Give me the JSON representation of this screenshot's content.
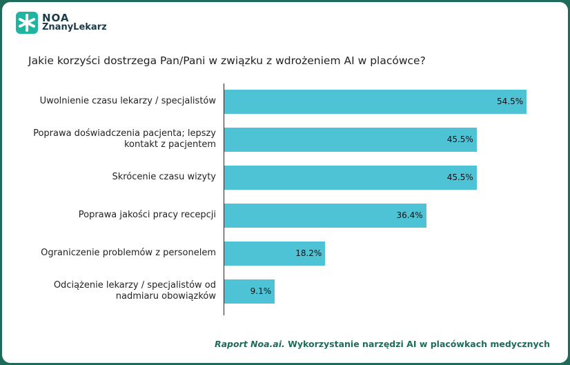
{
  "header": {
    "logo_top": "NOA",
    "logo_bottom": "ZnanyLekarz"
  },
  "chart_data": {
    "type": "bar",
    "orientation": "horizontal",
    "title": "Jakie korzyści dostrzega Pan/Pani w związku z wdrożeniem AI w placówce?",
    "categories": [
      "Uwolnienie czasu lekarzy / specjalistów",
      "Poprawa doświadczenia pacjenta; lepszy kontakt z pacjentem",
      "Skrócenie czasu wizyty",
      "Poprawa jakości pracy recepcji",
      "Ograniczenie problemów z personelem",
      "Odciążenie lekarzy / specjalistów od nadmiaru obowiązków"
    ],
    "values": [
      54.5,
      45.5,
      45.5,
      36.4,
      18.2,
      9.1
    ],
    "value_labels": [
      "54.5%",
      "45.5%",
      "45.5%",
      "36.4%",
      "18.2%",
      "9.1%"
    ],
    "color": "#4fc3d6"
  },
  "footer": {
    "source_italic": "Raport Noa.ai.",
    "source_text": "Wykorzystanie narzędzi AI w placówkach medycznych"
  }
}
